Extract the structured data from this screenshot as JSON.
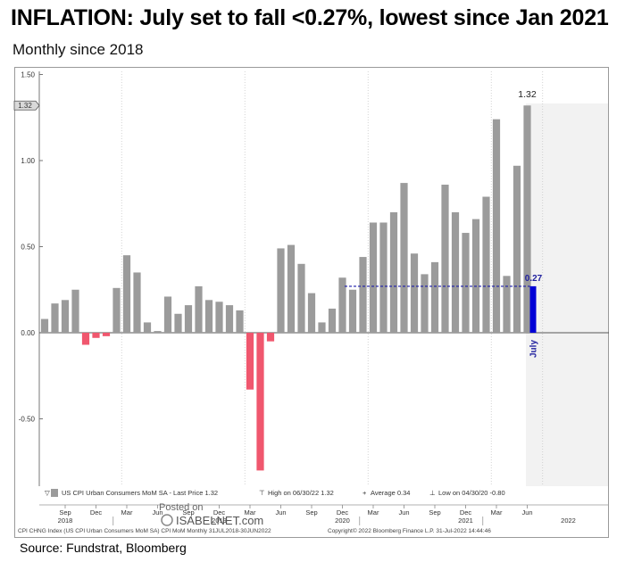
{
  "chart_data": {
    "type": "bar",
    "title": "INFLATION: July set to fall <0.27%, lowest since Jan 2021",
    "subtitle": "Monthly since 2018",
    "source": "Source: Fundstrat, Bloomberg",
    "ylim": [
      -0.9,
      1.5
    ],
    "y_ticks": [
      "1.50",
      "1.00",
      "0.50",
      "0.00",
      "-0.50"
    ],
    "y_tick_values": [
      1.5,
      1.0,
      0.5,
      0.0,
      -0.5
    ],
    "last_price_tag": "1.32",
    "top_label": "1.32",
    "values": [
      0.08,
      0.17,
      0.19,
      0.25,
      -0.07,
      -0.03,
      -0.02,
      0.26,
      0.45,
      0.35,
      0.06,
      0.01,
      0.21,
      0.11,
      0.16,
      0.27,
      0.19,
      0.18,
      0.16,
      0.13,
      -0.33,
      -0.8,
      -0.05,
      0.49,
      0.51,
      0.4,
      0.23,
      0.06,
      0.14,
      0.32,
      0.25,
      0.44,
      0.64,
      0.64,
      0.7,
      0.87,
      0.46,
      0.34,
      0.41,
      0.86,
      0.7,
      0.58,
      0.66,
      0.79,
      1.24,
      0.33,
      0.97,
      1.32
    ],
    "forecast": {
      "label": "July",
      "value": 0.27,
      "value_label": "0.27"
    },
    "x_month_labels": [
      "Sep",
      "Dec",
      "Mar",
      "Jun",
      "Sep",
      "Dec",
      "Mar",
      "Jun",
      "Sep",
      "Dec",
      "Mar",
      "Jun",
      "Sep",
      "Dec",
      "Mar",
      "Jun"
    ],
    "x_year_labels": [
      {
        "label": "2018",
        "month_index": 2
      },
      {
        "label": "2019",
        "month_index": 17
      },
      {
        "label": "2020",
        "month_index": 29
      },
      {
        "label": "2021",
        "month_index": 41
      },
      {
        "label": "2022",
        "month_index": 51
      }
    ],
    "legend": {
      "series": "US CPI Urban Consumers MoM SA - Last Price 1.32",
      "high": "High on 06/30/22 1.32",
      "average": "Average 0.34",
      "low": "Low on 04/30/20 -0.80"
    },
    "footer_left": "CPI CHNG Index (US CPI Urban Consumers MoM SA) CPI MoM  Monthly 31JUL2018-30JUN2022",
    "footer_right": "Copyright© 2022 Bloomberg Finance L.P.      31-Jul-2022 14:44:46",
    "watermark_top": "Posted on",
    "watermark_bottom": "ISABELNET.com",
    "colors": {
      "positive": "#9b9b9b",
      "negative": "#f0576e",
      "forecast": "#0000d6",
      "shade": "#f2f2f2"
    }
  }
}
